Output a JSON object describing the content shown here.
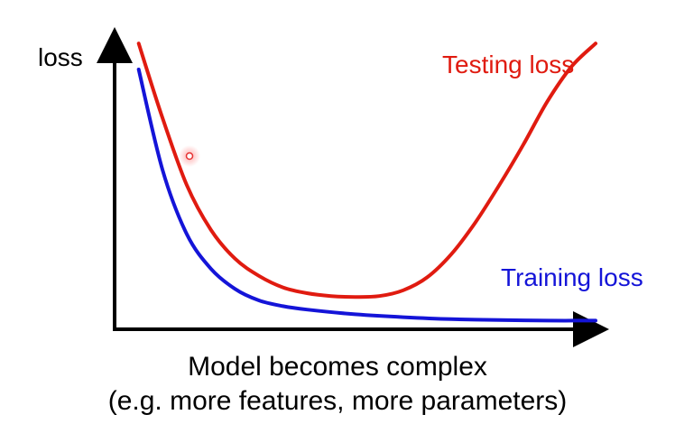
{
  "chart_data": {
    "type": "line",
    "title": "",
    "xlabel": "Model becomes complex",
    "xlabel_sub": "(e.g. more features, more parameters)",
    "ylabel": "loss",
    "grid": false,
    "xlim": [
      0,
      10
    ],
    "ylim": [
      0,
      10
    ],
    "series": [
      {
        "name": "Testing loss",
        "color": "#e01b10",
        "x": [
          0.5,
          1.0,
          1.5,
          2.0,
          2.5,
          3.0,
          3.5,
          4.0,
          4.5,
          5.0,
          5.5,
          6.0,
          6.5,
          7.0,
          7.5,
          8.0,
          8.5,
          9.0,
          9.5,
          10.0
        ],
        "y": [
          9.9,
          7.3,
          5.0,
          3.45,
          2.45,
          1.85,
          1.45,
          1.25,
          1.15,
          1.12,
          1.15,
          1.35,
          1.8,
          2.6,
          3.7,
          5.0,
          6.4,
          7.9,
          9.1,
          9.9
        ]
      },
      {
        "name": "Training loss",
        "color": "#1414d8",
        "x": [
          0.5,
          1.0,
          1.5,
          2.0,
          2.5,
          3.0,
          3.5,
          4.0,
          5.0,
          6.0,
          7.0,
          8.0,
          9.0,
          10.0
        ],
        "y": [
          9.0,
          5.5,
          3.3,
          2.1,
          1.4,
          1.0,
          0.8,
          0.68,
          0.52,
          0.42,
          0.35,
          0.32,
          0.3,
          0.3
        ]
      }
    ]
  },
  "colors": {
    "axis": "#000000",
    "testing": "#e01b10",
    "training": "#1414d8",
    "cursor": "#e63232"
  }
}
